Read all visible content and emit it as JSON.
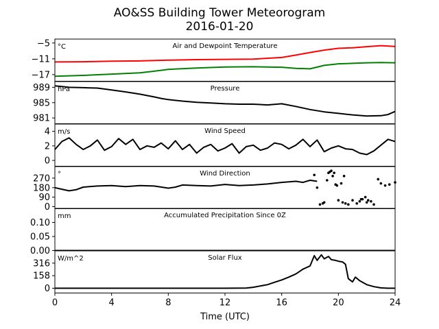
{
  "figure": {
    "title_line1": "AO&SS Building Tower Meteorogram",
    "title_line2": "2016-01-20",
    "xlabel": "Time (UTC)",
    "x_ticks": [
      0,
      4,
      8,
      12,
      16,
      20,
      24
    ],
    "xlim": [
      0,
      24
    ]
  },
  "chart_data": [
    {
      "type": "line",
      "title": "Air and Dewpoint Temperature",
      "unit": "°C",
      "ylim": [
        -19.5,
        -3.5
      ],
      "yticks": [
        -5,
        -11,
        -17
      ],
      "ytick_labels": [
        "−5",
        "−11",
        "−17"
      ],
      "series": [
        {
          "color": "#ff0000",
          "x": [
            0,
            2,
            4,
            6,
            8,
            10,
            12,
            14,
            16,
            17,
            18,
            19,
            20,
            21,
            22,
            23,
            24
          ],
          "y": [
            -12.2,
            -12.1,
            -11.9,
            -11.8,
            -11.5,
            -11.3,
            -11.2,
            -11.1,
            -10.5,
            -9.6,
            -8.6,
            -7.7,
            -7.0,
            -6.8,
            -6.4,
            -6.0,
            -6.3
          ]
        },
        {
          "color": "#008000",
          "x": [
            0,
            2,
            4,
            6,
            7,
            8,
            10,
            12,
            14,
            16,
            17,
            18,
            19,
            20,
            21,
            22,
            23,
            24
          ],
          "y": [
            -17.6,
            -17.3,
            -16.8,
            -16.3,
            -15.7,
            -15.0,
            -14.5,
            -14.1,
            -14.0,
            -14.2,
            -14.6,
            -14.8,
            -13.5,
            -12.9,
            -12.7,
            -12.5,
            -12.4,
            -12.5
          ]
        }
      ]
    },
    {
      "type": "line",
      "title": "Pressure",
      "unit": "hPa",
      "ylim": [
        979.5,
        990.5
      ],
      "yticks": [
        989,
        985,
        981
      ],
      "ytick_labels": [
        "989",
        "985",
        "981"
      ],
      "series": [
        {
          "color": "#000000",
          "x": [
            0,
            0.5,
            1,
            2,
            3,
            4,
            5,
            6,
            7,
            7.5,
            8,
            9,
            10,
            11,
            12,
            13,
            14,
            15,
            16,
            17,
            18,
            19,
            20,
            21,
            22,
            23,
            23.5,
            24
          ],
          "y": [
            989.4,
            989.2,
            989.0,
            988.9,
            988.8,
            988.3,
            987.8,
            987.2,
            986.5,
            986.1,
            985.8,
            985.4,
            985.1,
            984.9,
            984.7,
            984.6,
            984.6,
            984.4,
            984.7,
            984.0,
            983.2,
            982.6,
            982.2,
            981.8,
            981.5,
            981.6,
            981.9,
            982.7
          ]
        }
      ]
    },
    {
      "type": "line",
      "title": "Wind Speed",
      "unit": "m/s",
      "ylim": [
        -0.8,
        5
      ],
      "yticks": [
        4,
        2,
        0
      ],
      "ytick_labels": [
        "4",
        "2",
        "0"
      ],
      "series": [
        {
          "color": "#000000",
          "x": [
            0,
            0.5,
            1,
            1.5,
            2,
            2.5,
            3,
            3.5,
            4,
            4.5,
            5,
            5.5,
            6,
            6.5,
            7,
            7.5,
            8,
            8.5,
            9,
            9.5,
            10,
            10.5,
            11,
            11.5,
            12,
            12.5,
            13,
            13.5,
            14,
            14.5,
            15,
            15.5,
            16,
            16.5,
            17,
            17.5,
            18,
            18.5,
            19,
            19.5,
            20,
            20.5,
            21,
            21.5,
            22,
            22.5,
            23,
            23.5,
            24
          ],
          "y": [
            1.5,
            2.6,
            3.1,
            2.2,
            1.5,
            2.0,
            2.8,
            1.4,
            1.9,
            3.0,
            2.2,
            2.9,
            1.5,
            2.0,
            1.8,
            2.4,
            1.6,
            2.7,
            1.5,
            2.2,
            1.0,
            1.8,
            2.2,
            1.3,
            1.7,
            2.3,
            1.0,
            1.9,
            2.1,
            1.4,
            1.7,
            2.4,
            2.2,
            1.6,
            2.1,
            2.9,
            1.9,
            2.8,
            1.2,
            1.7,
            2.0,
            1.6,
            1.5,
            1.0,
            0.8,
            1.3,
            2.1,
            2.9,
            2.6
          ]
        }
      ]
    },
    {
      "type": "scatter",
      "title": "Wind Direction",
      "unit": "°",
      "ylim": [
        -20,
        380
      ],
      "yticks": [
        270,
        180,
        90,
        0
      ],
      "ytick_labels": [
        "270",
        "180",
        "90",
        "0"
      ],
      "series": [
        {
          "color": "#000000",
          "style": "line",
          "x": [
            0,
            0.5,
            1,
            1.5,
            2,
            3,
            4,
            5,
            6,
            7,
            8,
            8.5,
            9,
            10,
            11,
            12,
            13,
            14,
            15,
            16,
            17,
            17.5,
            18,
            18.5
          ],
          "y": [
            180,
            165,
            150,
            160,
            185,
            195,
            200,
            190,
            200,
            195,
            175,
            185,
            205,
            200,
            195,
            210,
            200,
            205,
            215,
            230,
            240,
            230,
            250,
            240
          ]
        },
        {
          "color": "#000000",
          "style": "points",
          "x": [
            18.3,
            18.5,
            18.7,
            18.9,
            19.0,
            19.3,
            19.5,
            19.6,
            19.8,
            20.0,
            20.3,
            20.5,
            20.7,
            21.0,
            21.3,
            21.5,
            21.7,
            22.0,
            22.3,
            22.5,
            22.8,
            23.0,
            23.3,
            23.6,
            24.0,
            19.2,
            19.4,
            19.7,
            19.9,
            20.2,
            20.4,
            21.6,
            21.9,
            22.1
          ],
          "y": [
            300,
            180,
            20,
            30,
            40,
            320,
            340,
            290,
            210,
            60,
            40,
            30,
            20,
            60,
            30,
            50,
            70,
            40,
            50,
            20,
            260,
            220,
            200,
            210,
            230,
            250,
            330,
            320,
            200,
            220,
            290,
            70,
            90,
            60
          ]
        }
      ]
    },
    {
      "type": "line",
      "title": "Accumulated Precipitation Since 0Z",
      "unit": "mm",
      "ylim": [
        0,
        0.15
      ],
      "yticks": [
        0.1,
        0.05,
        0.0
      ],
      "ytick_labels": [
        "0.10",
        "0.05",
        "0.00"
      ],
      "series": [
        {
          "color": "#000000",
          "x": [
            0,
            24
          ],
          "y": [
            0,
            0
          ]
        }
      ]
    },
    {
      "type": "line",
      "title": "Solar Flux",
      "unit": "W/m^2",
      "ylim": [
        -60,
        470
      ],
      "yticks": [
        316,
        158,
        0
      ],
      "ytick_labels": [
        "316",
        "158",
        "0"
      ],
      "series": [
        {
          "color": "#000000",
          "x": [
            0,
            4,
            8,
            12,
            13.5,
            14,
            15,
            15.5,
            16,
            16.5,
            17,
            17.5,
            18,
            18.3,
            18.5,
            18.8,
            19,
            19.3,
            19.5,
            19.8,
            20,
            20.3,
            20.5,
            20.7,
            21,
            21.2,
            21.5,
            22,
            22.5,
            23,
            23.5,
            24
          ],
          "y": [
            0,
            0,
            0,
            0,
            2,
            12,
            45,
            75,
            105,
            140,
            180,
            240,
            280,
            410,
            350,
            420,
            370,
            400,
            360,
            350,
            340,
            330,
            300,
            120,
            80,
            140,
            95,
            45,
            20,
            5,
            0,
            0
          ]
        }
      ]
    }
  ]
}
